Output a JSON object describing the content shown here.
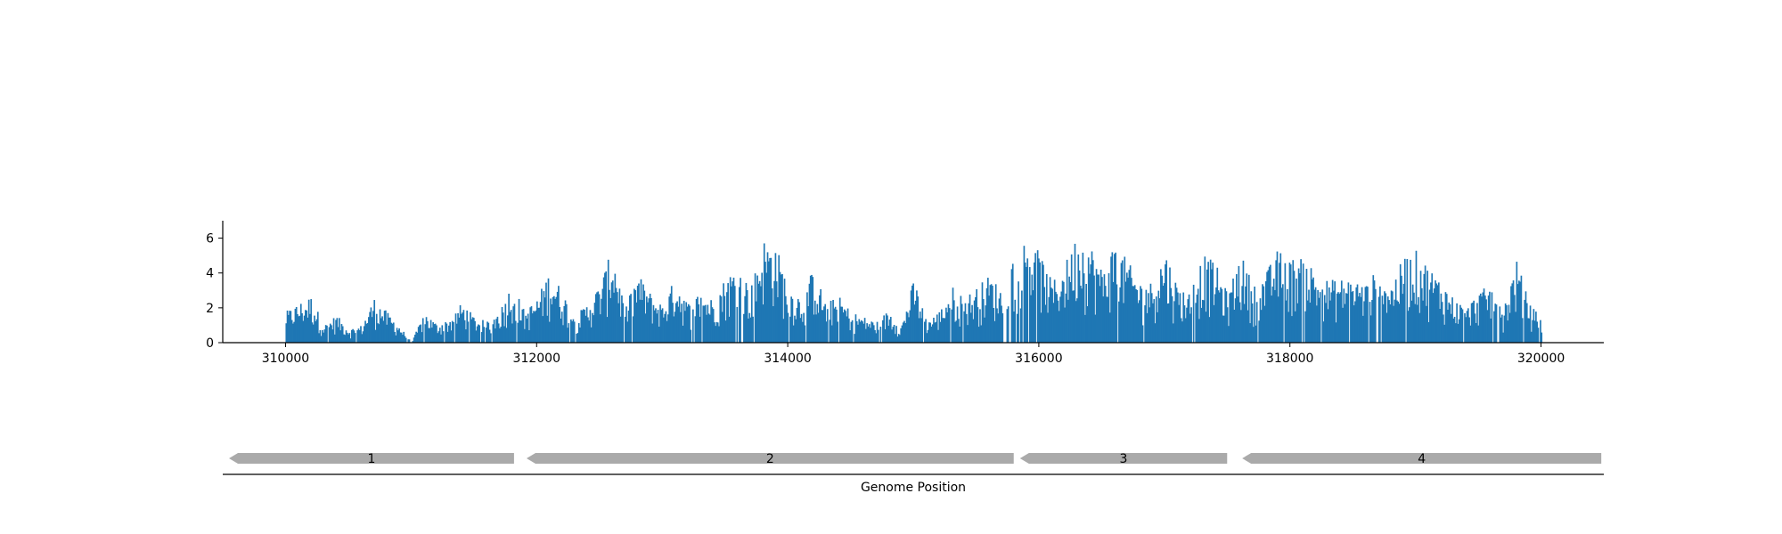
{
  "chart_data": {
    "type": "bar",
    "title": "",
    "xlabel": "Genome Position",
    "ylabel": "",
    "bar_color": "#1f77b4",
    "gene_color": "#aaaaaa",
    "xlim": [
      309500,
      320500
    ],
    "ylim": [
      0,
      7
    ],
    "x_ticks": [
      310000,
      312000,
      314000,
      316000,
      318000,
      320000
    ],
    "y_ticks": [
      0,
      2,
      4,
      6
    ],
    "x_tick_labels": [
      "310000",
      "312000",
      "314000",
      "316000",
      "318000",
      "320000"
    ],
    "y_tick_labels": [
      "0",
      "2",
      "4",
      "6"
    ],
    "coverage_profile": [
      [
        310000,
        1.8
      ],
      [
        310100,
        2.3
      ],
      [
        310200,
        2.7
      ],
      [
        310300,
        1.0
      ],
      [
        310400,
        1.6
      ],
      [
        310500,
        0.8
      ],
      [
        310600,
        1.0
      ],
      [
        310700,
        2.6
      ],
      [
        310800,
        1.8
      ],
      [
        310900,
        1.0
      ],
      [
        311000,
        0.0
      ],
      [
        311100,
        1.8
      ],
      [
        311200,
        1.1
      ],
      [
        311300,
        1.4
      ],
      [
        311400,
        2.3
      ],
      [
        311500,
        1.5
      ],
      [
        311600,
        1.2
      ],
      [
        311700,
        1.9
      ],
      [
        311800,
        3.5
      ],
      [
        311900,
        1.8
      ],
      [
        312000,
        2.6
      ],
      [
        312100,
        4.2
      ],
      [
        312200,
        3.0
      ],
      [
        312300,
        1.5
      ],
      [
        312400,
        2.3
      ],
      [
        312500,
        3.4
      ],
      [
        312600,
        5.5
      ],
      [
        312700,
        2.0
      ],
      [
        312800,
        4.0
      ],
      [
        312900,
        2.9
      ],
      [
        313000,
        2.2
      ],
      [
        313100,
        3.8
      ],
      [
        313200,
        2.3
      ],
      [
        313300,
        3.0
      ],
      [
        313400,
        2.5
      ],
      [
        313500,
        3.8
      ],
      [
        313600,
        4.5
      ],
      [
        313700,
        3.2
      ],
      [
        313800,
        6.0
      ],
      [
        313900,
        5.7
      ],
      [
        314000,
        3.3
      ],
      [
        314100,
        2.7
      ],
      [
        314200,
        4.3
      ],
      [
        314300,
        2.3
      ],
      [
        314400,
        2.7
      ],
      [
        314500,
        1.8
      ],
      [
        314600,
        1.5
      ],
      [
        314700,
        1.2
      ],
      [
        314800,
        1.9
      ],
      [
        314900,
        1.0
      ],
      [
        315000,
        3.7
      ],
      [
        315100,
        1.3
      ],
      [
        315200,
        1.8
      ],
      [
        315300,
        3.3
      ],
      [
        315400,
        2.6
      ],
      [
        315500,
        3.2
      ],
      [
        315600,
        3.9
      ],
      [
        315700,
        3.1
      ],
      [
        315800,
        5.0
      ],
      [
        315900,
        6.2
      ],
      [
        316000,
        5.2
      ],
      [
        316100,
        3.5
      ],
      [
        316200,
        4.5
      ],
      [
        316300,
        6.3
      ],
      [
        316400,
        5.8
      ],
      [
        316500,
        4.2
      ],
      [
        316600,
        5.9
      ],
      [
        316700,
        4.7
      ],
      [
        316800,
        3.6
      ],
      [
        316900,
        3.5
      ],
      [
        317000,
        5.4
      ],
      [
        317100,
        3.3
      ],
      [
        317200,
        2.9
      ],
      [
        317300,
        5.1
      ],
      [
        317400,
        4.6
      ],
      [
        317500,
        2.8
      ],
      [
        317600,
        5.2
      ],
      [
        317700,
        3.4
      ],
      [
        317800,
        4.0
      ],
      [
        317900,
        5.4
      ],
      [
        318000,
        4.8
      ],
      [
        318100,
        5.2
      ],
      [
        318200,
        4.1
      ],
      [
        318300,
        3.6
      ],
      [
        318400,
        3.7
      ],
      [
        318500,
        3.8
      ],
      [
        318600,
        3.4
      ],
      [
        318700,
        4.3
      ],
      [
        318800,
        3.4
      ],
      [
        318900,
        4.9
      ],
      [
        319000,
        5.3
      ],
      [
        319100,
        4.4
      ],
      [
        319200,
        3.6
      ],
      [
        319300,
        2.6
      ],
      [
        319400,
        2.0
      ],
      [
        319500,
        3.0
      ],
      [
        319600,
        3.3
      ],
      [
        319700,
        2.2
      ],
      [
        319800,
        4.8
      ],
      [
        319900,
        2.3
      ],
      [
        320000,
        1.4
      ]
    ],
    "genes": [
      {
        "label": "1",
        "start": 309550,
        "end": 311820,
        "strand": "-"
      },
      {
        "label": "2",
        "start": 311920,
        "end": 315800,
        "strand": "-"
      },
      {
        "label": "3",
        "start": 315850,
        "end": 317500,
        "strand": "-"
      },
      {
        "label": "4",
        "start": 317620,
        "end": 320480,
        "strand": "-"
      }
    ]
  }
}
